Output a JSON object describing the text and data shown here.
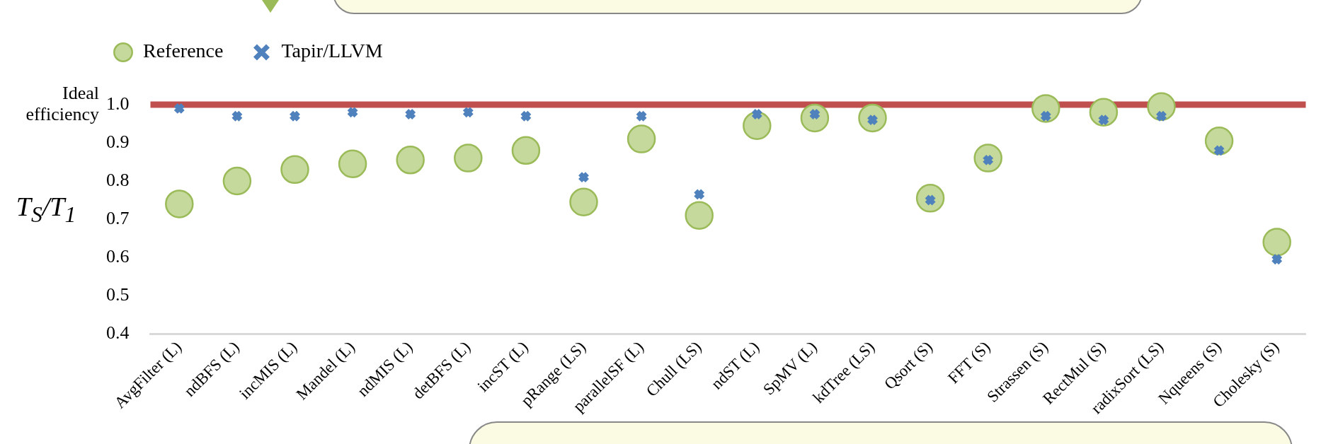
{
  "chart_data": {
    "type": "scatter",
    "categories": [
      "AvgFilter (L)",
      "ndBFS (L)",
      "incMIS (L)",
      "Mandel (L)",
      "ndMIS (L)",
      "detBFS (L)",
      "incST (L)",
      "pRange (LS)",
      "parallelSF (L)",
      "Chull (LS)",
      "ndST (L)",
      "SpMV (L)",
      "kdTree (LS)",
      "Qsort (S)",
      "FFT (S)",
      "Strassen (S)",
      "RectMul (S)",
      "radixSort (LS)",
      "Nqueens (S)",
      "Cholesky (S)"
    ],
    "series": [
      {
        "name": "Reference",
        "color": "#c5d99c",
        "marker": "circle",
        "values": [
          0.74,
          0.8,
          0.83,
          0.845,
          0.855,
          0.86,
          0.88,
          0.745,
          0.91,
          0.71,
          0.945,
          0.965,
          0.965,
          0.755,
          0.86,
          0.99,
          0.98,
          0.995,
          0.905,
          0.64
        ]
      },
      {
        "name": "Tapir/LLVM",
        "color": "#4f81bd",
        "marker": "cross",
        "values": [
          0.99,
          0.97,
          0.97,
          0.98,
          0.975,
          0.98,
          0.97,
          0.81,
          0.97,
          0.765,
          0.975,
          0.975,
          0.96,
          0.75,
          0.855,
          0.97,
          0.96,
          0.97,
          0.88,
          0.595
        ]
      }
    ],
    "ylabel": "T$_{S}$/T$_{1}$",
    "ylim": [
      0.4,
      1.0
    ],
    "yticks": [
      0.4,
      0.5,
      0.6,
      0.7,
      0.8,
      0.9,
      {
        "value": 1,
        "label": "1.0"
      }
    ],
    "ref_lines": [
      {
        "axis": "y",
        "value": 1,
        "label": "Ideal efficiency",
        "color": "#c0504d"
      }
    ],
    "legend": "top left"
  }
}
